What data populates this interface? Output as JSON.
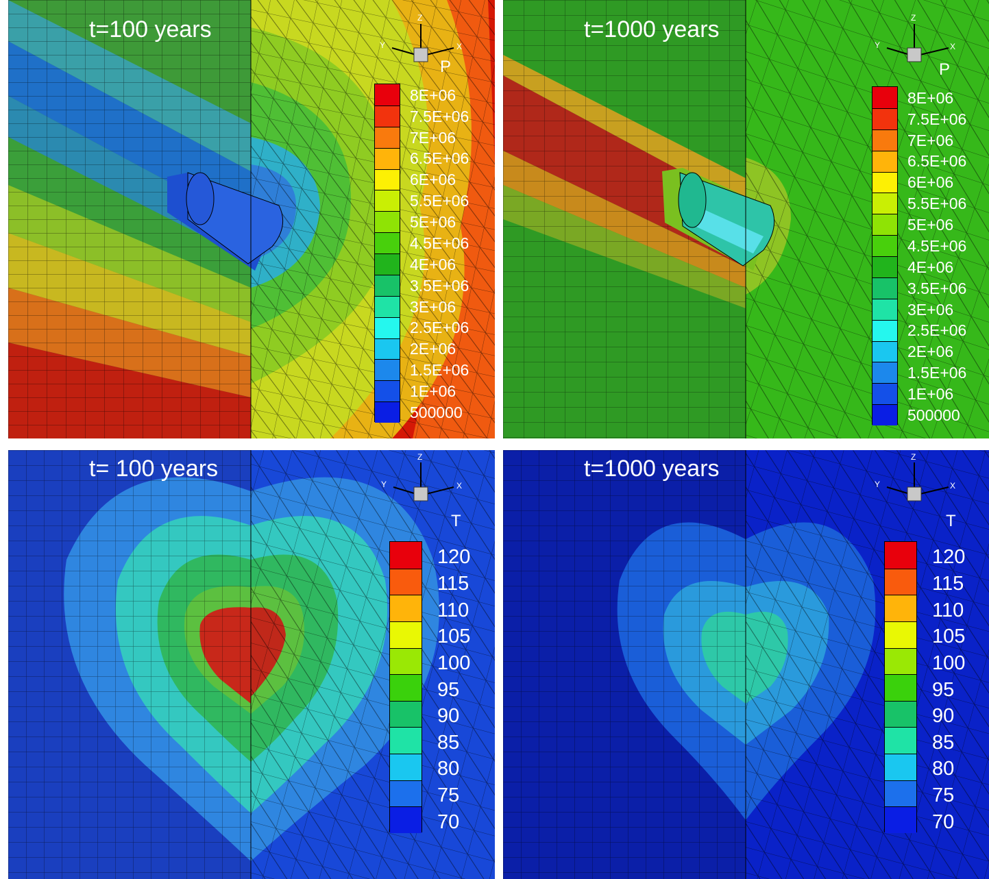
{
  "panels": [
    {
      "id": "p-100",
      "title": "t=100 years",
      "legend_title": "P",
      "ticks": [
        "8E+06",
        "7.5E+06",
        "7E+06",
        "6.5E+06",
        "6E+06",
        "5.5E+06",
        "5E+06",
        "4.5E+06",
        "4E+06",
        "3.5E+06",
        "3E+06",
        "2.5E+06",
        "2E+06",
        "1.5E+06",
        "1E+06",
        "500000"
      ],
      "colors": [
        "#e8000c",
        "#f2330d",
        "#f97a0d",
        "#ffb40a",
        "#fdf004",
        "#c9ef04",
        "#8fe305",
        "#48d00c",
        "#21b41c",
        "#18c268",
        "#1fe3a6",
        "#25f7ee",
        "#1ac7f0",
        "#1c88ec",
        "#1450e8",
        "#0a1ee4"
      ],
      "axes": {
        "z": "Z",
        "y": "Y",
        "x": "X"
      }
    },
    {
      "id": "p-1000",
      "title": "t=1000 years",
      "legend_title": "P",
      "ticks": [
        "8E+06",
        "7.5E+06",
        "7E+06",
        "6.5E+06",
        "6E+06",
        "5.5E+06",
        "5E+06",
        "4.5E+06",
        "4E+06",
        "3.5E+06",
        "3E+06",
        "2.5E+06",
        "2E+06",
        "1.5E+06",
        "1E+06",
        "500000"
      ],
      "colors": [
        "#e8000c",
        "#f2330d",
        "#f97a0d",
        "#ffb40a",
        "#fdf004",
        "#c9ef04",
        "#8fe305",
        "#48d00c",
        "#21b41c",
        "#18c268",
        "#1fe3a6",
        "#25f7ee",
        "#1ac7f0",
        "#1c88ec",
        "#1450e8",
        "#0a1ee4"
      ],
      "axes": {
        "z": "Z",
        "y": "Y",
        "x": "X"
      }
    },
    {
      "id": "t-100",
      "title": "t= 100 years",
      "legend_title": "T",
      "ticks": [
        "120",
        "115",
        "110",
        "105",
        "100",
        "95",
        "90",
        "85",
        "80",
        "75",
        "70"
      ],
      "colors": [
        "#e8000c",
        "#f95b0d",
        "#ffb40a",
        "#e9f804",
        "#9ae805",
        "#3ad10c",
        "#18c268",
        "#1fe3a6",
        "#1ac7f0",
        "#1c70ec",
        "#0a1ee4"
      ],
      "axes": {
        "z": "Z",
        "y": "Y",
        "x": "X"
      }
    },
    {
      "id": "t-1000",
      "title": "t=1000 years",
      "legend_title": "T",
      "ticks": [
        "120",
        "115",
        "110",
        "105",
        "100",
        "95",
        "90",
        "85",
        "80",
        "75",
        "70"
      ],
      "colors": [
        "#e8000c",
        "#f95b0d",
        "#ffb40a",
        "#e9f804",
        "#9ae805",
        "#3ad10c",
        "#18c268",
        "#1fe3a6",
        "#1ac7f0",
        "#1c70ec",
        "#0a1ee4"
      ],
      "axes": {
        "z": "Z",
        "y": "Y",
        "x": "X"
      }
    }
  ]
}
